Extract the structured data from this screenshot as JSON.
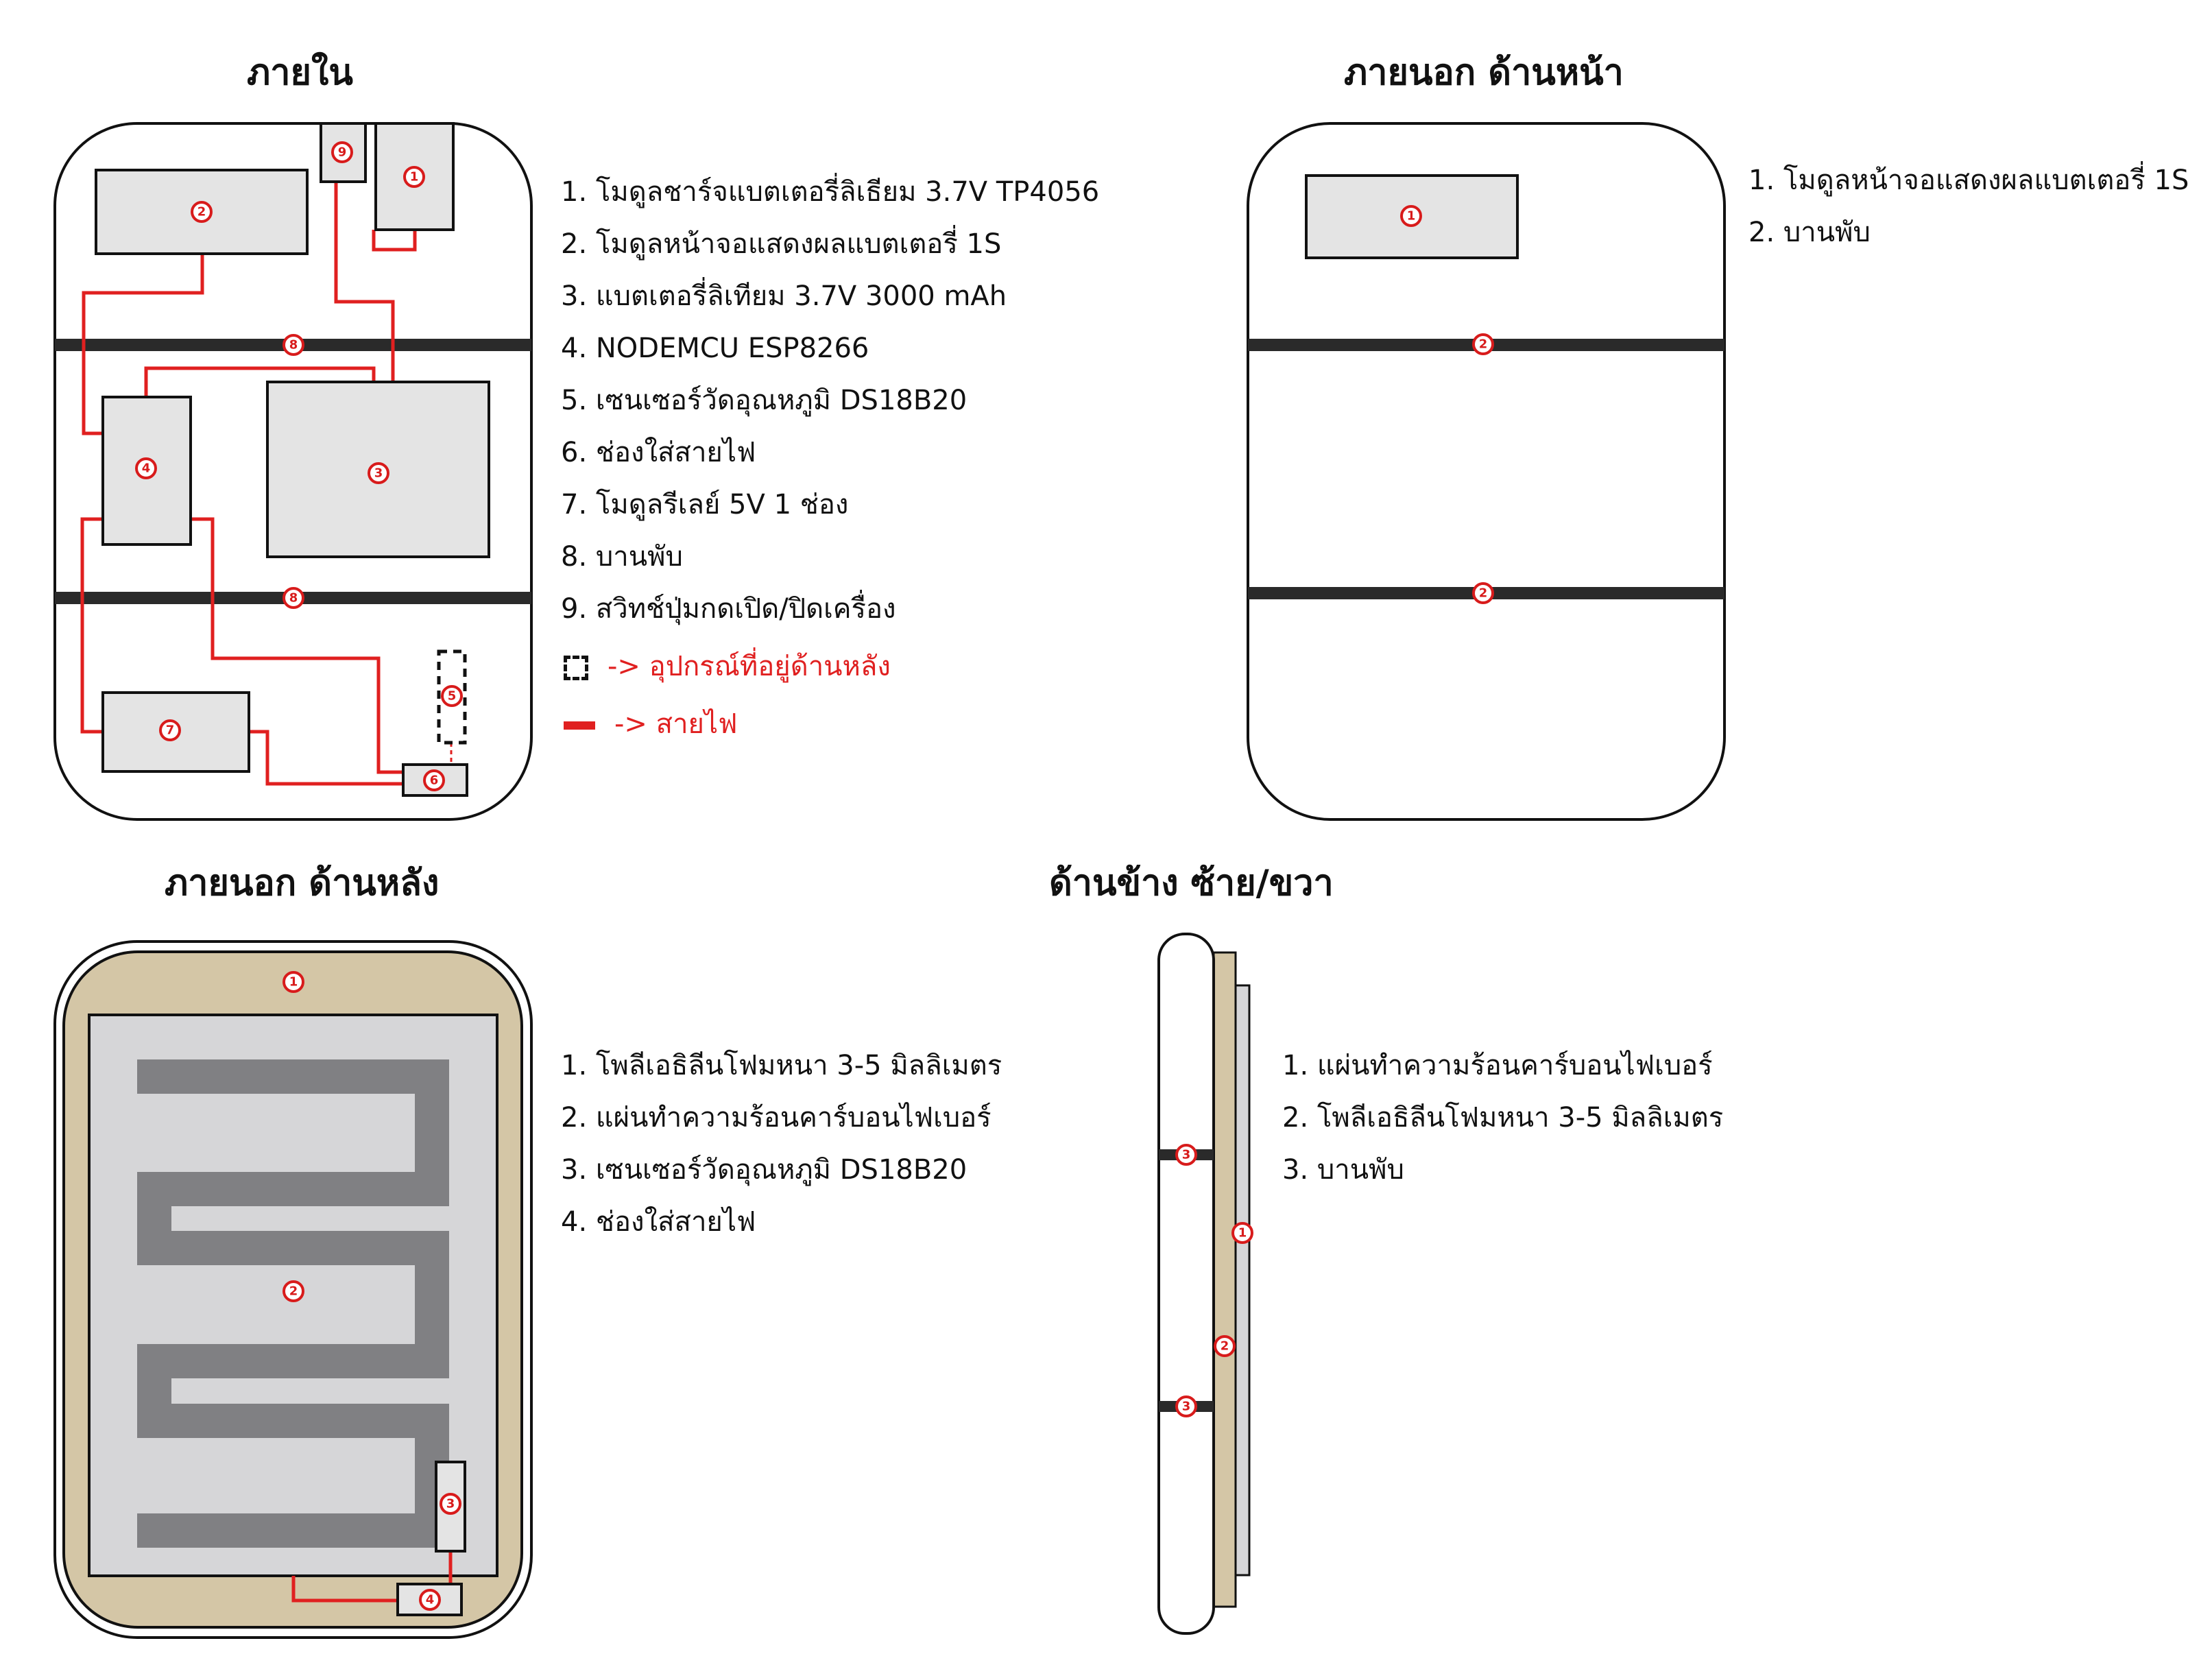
{
  "panels": {
    "inside": {
      "title": "ภายใน",
      "legend": [
        "1. โมดูลชาร์จแบตเตอรี่ลิเธียม 3.7V TP4056",
        "2. โมดูลหน้าจอแสดงผลแบตเตอรี่ 1S",
        "3. แบตเตอรี่ลิเทียม 3.7V 3000 mAh",
        "4. NODEMCU ESP8266",
        "5. เซนเซอร์วัดอุณหภูมิ DS18B20",
        "6. ช่องใส่สายไฟ",
        "7. โมดูลรีเลย์ 5V 1 ช่อง",
        "8. บานพับ",
        "9. สวิทช์ปุ่มกดเปิด/ปิดเครื่อง"
      ],
      "key": {
        "back_device": "-> อุปกรณ์ที่อยู่ด้านหลัง",
        "wire": "-> สายไฟ"
      },
      "markers": [
        "1",
        "2",
        "3",
        "4",
        "5",
        "6",
        "7",
        "8",
        "8",
        "9"
      ]
    },
    "front": {
      "title": "ภายนอก ด้านหน้า",
      "legend": [
        "1. โมดูลหน้าจอแสดงผลแบตเตอรี่ 1S",
        "2. บานพับ"
      ],
      "markers": [
        "1",
        "2",
        "2"
      ]
    },
    "back": {
      "title": "ภายนอก ด้านหลัง",
      "legend": [
        "1. โพลีเอธิลีนโฟมหนา 3-5 มิลลิเมตร",
        "2. แผ่นทำความร้อนคาร์บอนไฟเบอร์",
        "3. เซนเซอร์วัดอุณหภูมิ DS18B20",
        "4. ช่องใส่สายไฟ"
      ],
      "markers": [
        "1",
        "2",
        "3",
        "4"
      ]
    },
    "side": {
      "title": "ด้านข้าง ซ้าย/ขวา",
      "legend": [
        "1. แผ่นทำความร้อนคาร์บอนไฟเบอร์",
        "2. โพลีเอธิลีนโฟมหนา 3-5 มิลลิเมตร",
        "3. บานพับ"
      ],
      "markers": [
        "3",
        "3",
        "1",
        "2"
      ]
    }
  },
  "colors": {
    "wire": "#e02020",
    "marker": "#d81b1b",
    "hinge": "#2a2a2a",
    "module_fill": "#e4e4e4",
    "foam": "#d4c6a6",
    "heater_bg": "#d6d6d8",
    "heater_trace": "#808083"
  }
}
